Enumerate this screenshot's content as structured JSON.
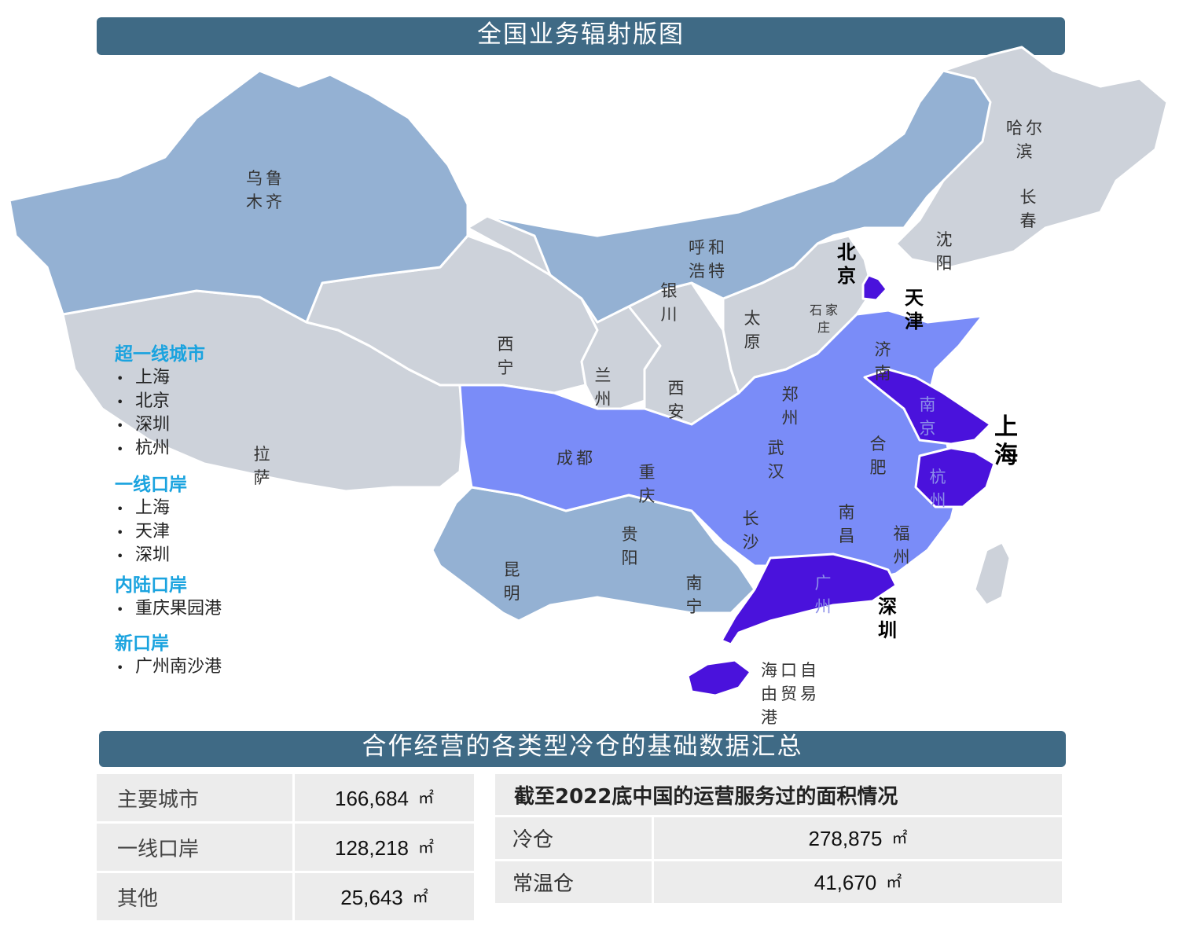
{
  "title": "全国业务辐射版图",
  "summary_title": "合作经营的各类型冷仓的基础数据汇总",
  "colors": {
    "banner": "#3f6a85",
    "region_grey": "#cdd2da",
    "region_steel": "#94b1d3",
    "region_blue": "#7a8cf8",
    "region_purple": "#4a12dc",
    "legend_title": "#1aa3df"
  },
  "cities": {
    "urumqi": "乌鲁木齐",
    "harbin": "哈尔滨",
    "changchun": "长春",
    "shenyang": "沈阳",
    "hohhot": "呼和浩特",
    "beijing": "北京",
    "tianjin": "天津",
    "yinchuan": "银川",
    "taiyuan": "太原",
    "shijiazhuang": "石家庄",
    "jinan": "济南",
    "xining": "西宁",
    "lanzhou": "兰州",
    "xian": "西安",
    "zhengzhou": "郑州",
    "nanjing": "南京",
    "shanghai": "上海",
    "lhasa": "拉萨",
    "chengdu": "成都",
    "chongqing": "重庆",
    "wuhan": "武汉",
    "hefei": "合肥",
    "hangzhou": "杭州",
    "guiyang": "贵阳",
    "changsha": "长沙",
    "nanchang": "南昌",
    "fuzhou": "福州",
    "kunming": "昆明",
    "nanning": "南宁",
    "guangzhou": "广州",
    "shenzhen": "深圳",
    "haikou": "海口自由贸易港"
  },
  "legend": {
    "groups": [
      {
        "title": "超一线城市",
        "items": [
          "上海",
          "北京",
          "深圳",
          "杭州"
        ]
      },
      {
        "title": "一线口岸",
        "items": [
          "上海",
          "天津",
          "深圳"
        ]
      },
      {
        "title": "内陆口岸",
        "items": [
          "重庆果园港"
        ]
      },
      {
        "title": "新口岸",
        "items": [
          "广州南沙港"
        ]
      }
    ]
  },
  "left_table": {
    "unit": "㎡",
    "rows": [
      {
        "label": "主要城市",
        "value": "166,684"
      },
      {
        "label": "一线口岸",
        "value": "128,218"
      },
      {
        "label": "其他",
        "value": "25,643"
      }
    ]
  },
  "right_table": {
    "header": "截至2022底中国的运营服务过的面积情况",
    "unit": "㎡",
    "rows": [
      {
        "label": "冷仓",
        "value": "278,875"
      },
      {
        "label": "常温仓",
        "value": "41,670"
      }
    ]
  }
}
